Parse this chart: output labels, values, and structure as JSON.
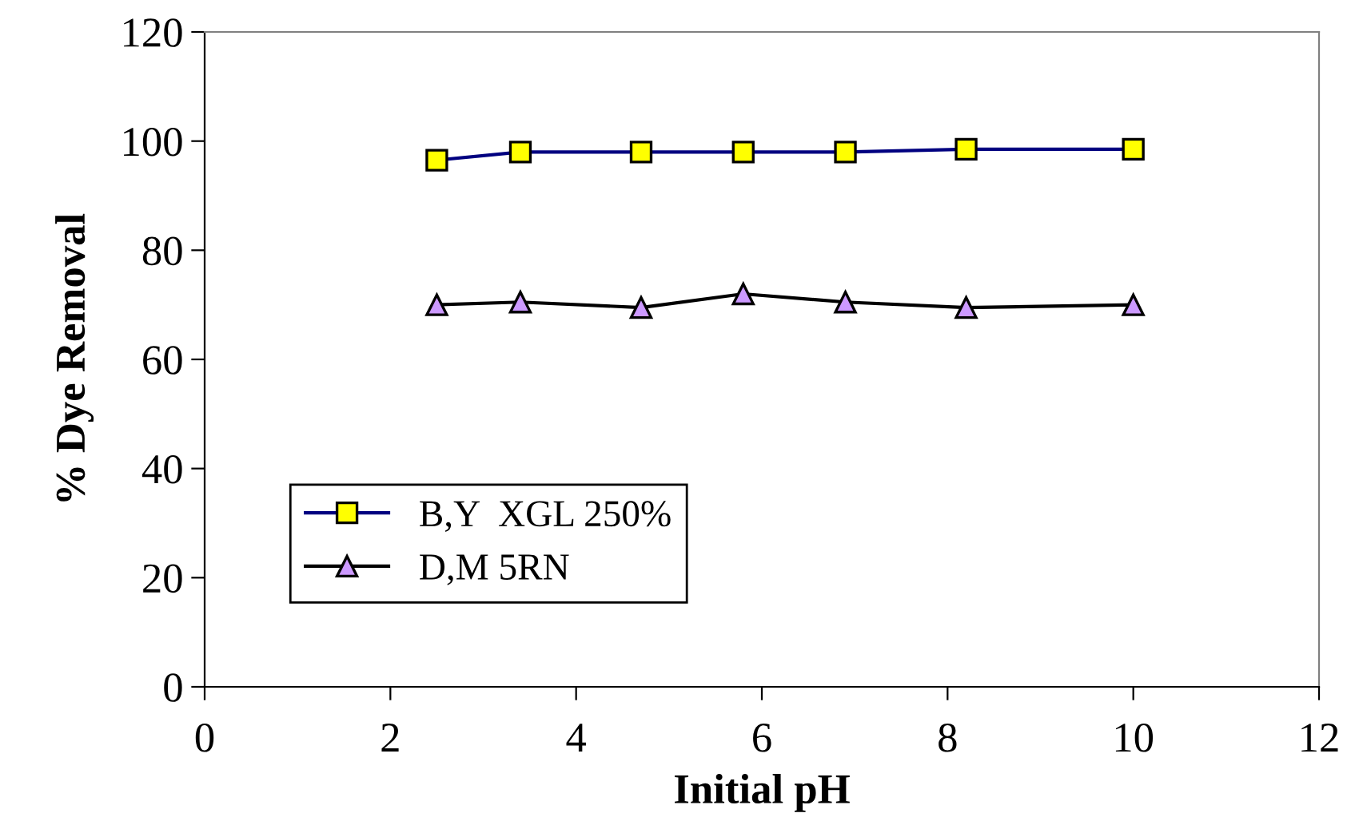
{
  "chart_data": {
    "type": "line",
    "xlabel": "Initial pH",
    "ylabel": "% Dye Removal",
    "x": [
      2.5,
      3.4,
      4.7,
      5.8,
      6.9,
      8.2,
      10.0
    ],
    "series": [
      {
        "name": "B,Y  XGL 250%",
        "color": "#000080",
        "colors": [
          "#ffff00",
          "#ffff00",
          "#ffff00",
          "#ffff00",
          "#ffff00",
          "#ffff00",
          "#ffff00"
        ],
        "marker": "square",
        "values": [
          96.5,
          98,
          98,
          98,
          98,
          98.5,
          98.5
        ]
      },
      {
        "name": "D,M 5RN",
        "color": "#000000",
        "colors": [
          "#cc99ff",
          "#cc99ff",
          "#cc99ff",
          "#cc99ff",
          "#cc99ff",
          "#cc99ff",
          "#cc99ff"
        ],
        "marker": "triangle",
        "values": [
          70,
          70.5,
          69.5,
          72,
          70.5,
          69.5,
          70
        ]
      }
    ],
    "xlim": [
      0,
      12
    ],
    "xticks": [
      0,
      2,
      4,
      6,
      8,
      10,
      12
    ],
    "ylim": [
      0,
      120
    ],
    "yticks": [
      0,
      20,
      40,
      60,
      80,
      100,
      120
    ],
    "grid": false,
    "legend": "bottom left",
    "line_style": "solid"
  }
}
